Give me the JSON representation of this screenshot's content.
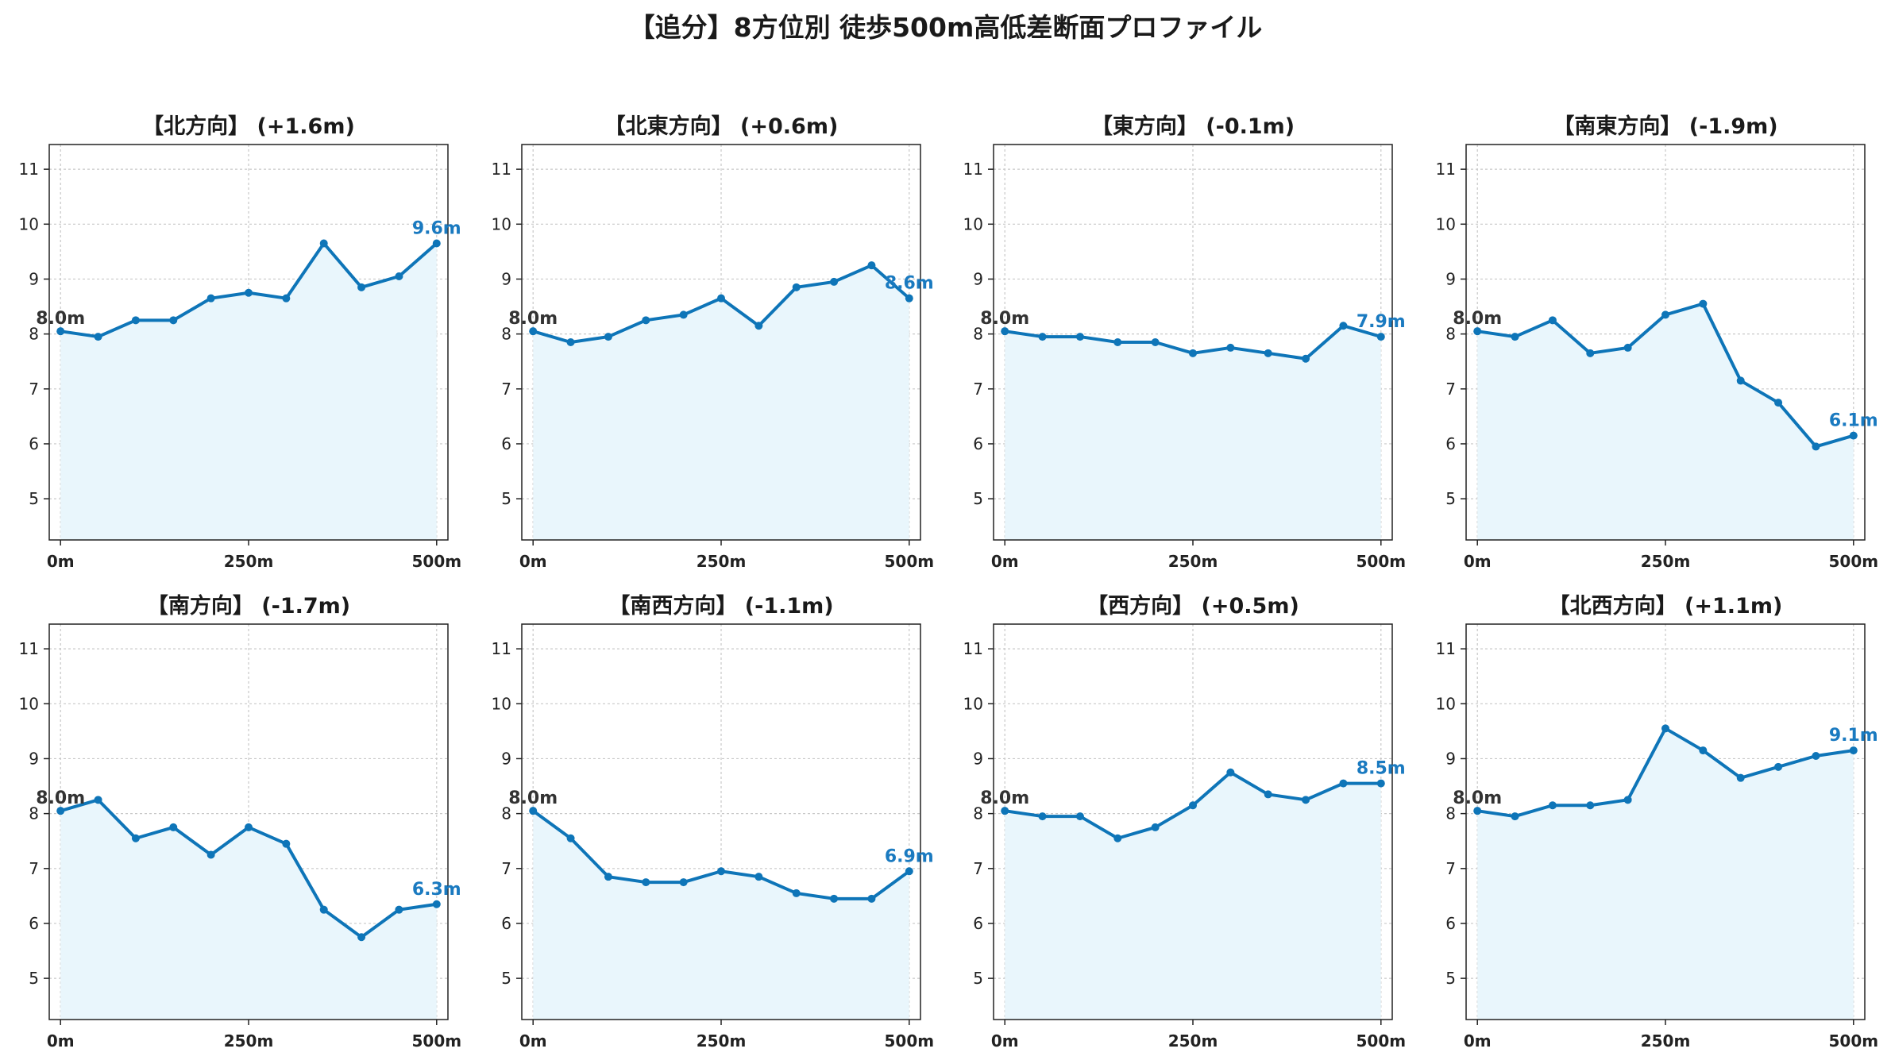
{
  "title": "【追分】8方位別 徒歩500m高低差断面プロファイル",
  "colors": {
    "line": "#0e75b8",
    "fill": "#e9f6fc",
    "start_label": "#333333",
    "end_label": "#1a7ac0",
    "grid": "#c8c8c8"
  },
  "chart_data": [
    {
      "type": "area",
      "title": "【北方向】 (+1.6m)",
      "x": [
        0,
        50,
        100,
        150,
        200,
        250,
        300,
        350,
        400,
        450,
        500
      ],
      "y": [
        8.05,
        7.95,
        8.25,
        8.25,
        8.65,
        8.75,
        8.65,
        9.65,
        8.85,
        9.05,
        9.65
      ],
      "start_label": "8.0m",
      "end_label": "9.6m",
      "xticks": [
        "0m",
        "250m",
        "500m"
      ],
      "yticks": [
        5,
        6,
        7,
        8,
        9,
        10,
        11
      ],
      "xlim": [
        -15,
        515
      ],
      "ylim": [
        4.25,
        11.45
      ],
      "grid": true
    },
    {
      "type": "area",
      "title": "【北東方向】 (+0.6m)",
      "x": [
        0,
        50,
        100,
        150,
        200,
        250,
        300,
        350,
        400,
        450,
        500
      ],
      "y": [
        8.05,
        7.85,
        7.95,
        8.25,
        8.35,
        8.65,
        8.15,
        8.85,
        8.95,
        9.25,
        8.65
      ],
      "start_label": "8.0m",
      "end_label": "8.6m",
      "xticks": [
        "0m",
        "250m",
        "500m"
      ],
      "yticks": [
        5,
        6,
        7,
        8,
        9,
        10,
        11
      ],
      "xlim": [
        -15,
        515
      ],
      "ylim": [
        4.25,
        11.45
      ],
      "grid": true
    },
    {
      "type": "area",
      "title": "【東方向】 (-0.1m)",
      "x": [
        0,
        50,
        100,
        150,
        200,
        250,
        300,
        350,
        400,
        450,
        500
      ],
      "y": [
        8.05,
        7.95,
        7.95,
        7.85,
        7.85,
        7.65,
        7.75,
        7.65,
        7.55,
        8.15,
        7.95
      ],
      "start_label": "8.0m",
      "end_label": "7.9m",
      "xticks": [
        "0m",
        "250m",
        "500m"
      ],
      "yticks": [
        5,
        6,
        7,
        8,
        9,
        10,
        11
      ],
      "xlim": [
        -15,
        515
      ],
      "ylim": [
        4.25,
        11.45
      ],
      "grid": true
    },
    {
      "type": "area",
      "title": "【南東方向】 (-1.9m)",
      "x": [
        0,
        50,
        100,
        150,
        200,
        250,
        300,
        350,
        400,
        450,
        500
      ],
      "y": [
        8.05,
        7.95,
        8.25,
        7.65,
        7.75,
        8.35,
        8.55,
        7.15,
        6.75,
        5.95,
        6.15
      ],
      "start_label": "8.0m",
      "end_label": "6.1m",
      "xticks": [
        "0m",
        "250m",
        "500m"
      ],
      "yticks": [
        5,
        6,
        7,
        8,
        9,
        10,
        11
      ],
      "xlim": [
        -15,
        515
      ],
      "ylim": [
        4.25,
        11.45
      ],
      "grid": true
    },
    {
      "type": "area",
      "title": "【南方向】 (-1.7m)",
      "x": [
        0,
        50,
        100,
        150,
        200,
        250,
        300,
        350,
        400,
        450,
        500
      ],
      "y": [
        8.05,
        8.25,
        7.55,
        7.75,
        7.25,
        7.75,
        7.45,
        6.25,
        5.75,
        6.25,
        6.35
      ],
      "start_label": "8.0m",
      "end_label": "6.3m",
      "xticks": [
        "0m",
        "250m",
        "500m"
      ],
      "yticks": [
        5,
        6,
        7,
        8,
        9,
        10,
        11
      ],
      "xlim": [
        -15,
        515
      ],
      "ylim": [
        4.25,
        11.45
      ],
      "grid": true
    },
    {
      "type": "area",
      "title": "【南西方向】 (-1.1m)",
      "x": [
        0,
        50,
        100,
        150,
        200,
        250,
        300,
        350,
        400,
        450,
        500
      ],
      "y": [
        8.05,
        7.55,
        6.85,
        6.75,
        6.75,
        6.95,
        6.85,
        6.55,
        6.45,
        6.45,
        6.95
      ],
      "start_label": "8.0m",
      "end_label": "6.9m",
      "xticks": [
        "0m",
        "250m",
        "500m"
      ],
      "yticks": [
        5,
        6,
        7,
        8,
        9,
        10,
        11
      ],
      "xlim": [
        -15,
        515
      ],
      "ylim": [
        4.25,
        11.45
      ],
      "grid": true
    },
    {
      "type": "area",
      "title": "【西方向】 (+0.5m)",
      "x": [
        0,
        50,
        100,
        150,
        200,
        250,
        300,
        350,
        400,
        450,
        500
      ],
      "y": [
        8.05,
        7.95,
        7.95,
        7.55,
        7.75,
        8.15,
        8.75,
        8.35,
        8.25,
        8.55,
        8.55
      ],
      "start_label": "8.0m",
      "end_label": "8.5m",
      "xticks": [
        "0m",
        "250m",
        "500m"
      ],
      "yticks": [
        5,
        6,
        7,
        8,
        9,
        10,
        11
      ],
      "xlim": [
        -15,
        515
      ],
      "ylim": [
        4.25,
        11.45
      ],
      "grid": true
    },
    {
      "type": "area",
      "title": "【北西方向】 (+1.1m)",
      "x": [
        0,
        50,
        100,
        150,
        200,
        250,
        300,
        350,
        400,
        450,
        500
      ],
      "y": [
        8.05,
        7.95,
        8.15,
        8.15,
        8.25,
        9.55,
        9.15,
        8.65,
        8.85,
        9.05,
        9.15
      ],
      "start_label": "8.0m",
      "end_label": "9.1m",
      "xticks": [
        "0m",
        "250m",
        "500m"
      ],
      "yticks": [
        5,
        6,
        7,
        8,
        9,
        10,
        11
      ],
      "xlim": [
        -15,
        515
      ],
      "ylim": [
        4.25,
        11.45
      ],
      "grid": true
    }
  ]
}
